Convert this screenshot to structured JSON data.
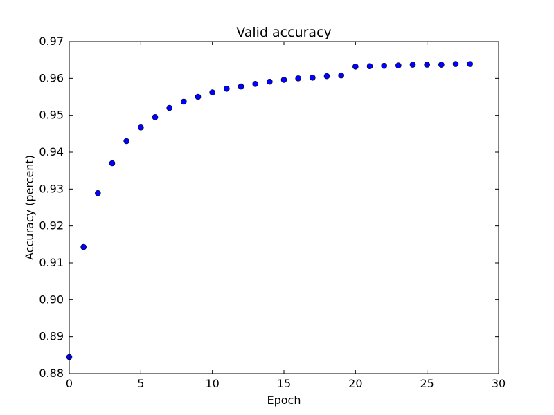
{
  "chart_data": {
    "type": "scatter",
    "title": "Valid accuracy",
    "xlabel": "Epoch",
    "ylabel": "Accuracy (percent)",
    "xlim": [
      0,
      30
    ],
    "ylim": [
      0.88,
      0.97
    ],
    "xticks": [
      0,
      5,
      10,
      15,
      20,
      25,
      30
    ],
    "xtick_labels": [
      "0",
      "5",
      "10",
      "15",
      "20",
      "25",
      "30"
    ],
    "yticks": [
      0.88,
      0.89,
      0.9,
      0.91,
      0.92,
      0.93,
      0.94,
      0.95,
      0.96,
      0.97
    ],
    "ytick_labels": [
      "0.88",
      "0.89",
      "0.90",
      "0.91",
      "0.92",
      "0.93",
      "0.94",
      "0.95",
      "0.96",
      "0.97"
    ],
    "grid": false,
    "marker_color": "#0000ff",
    "x": [
      0,
      1,
      2,
      3,
      4,
      5,
      6,
      7,
      8,
      9,
      10,
      11,
      12,
      13,
      14,
      15,
      16,
      17,
      18,
      19,
      20,
      21,
      22,
      23,
      24,
      25,
      26,
      27,
      28
    ],
    "y": [
      0.8845,
      0.9143,
      0.9289,
      0.937,
      0.943,
      0.9467,
      0.9495,
      0.952,
      0.9537,
      0.955,
      0.9562,
      0.9572,
      0.9578,
      0.9585,
      0.9591,
      0.9596,
      0.96,
      0.9602,
      0.9606,
      0.9608,
      0.9632,
      0.9633,
      0.9634,
      0.9635,
      0.9637,
      0.9637,
      0.9637,
      0.9639,
      0.9639
    ]
  }
}
